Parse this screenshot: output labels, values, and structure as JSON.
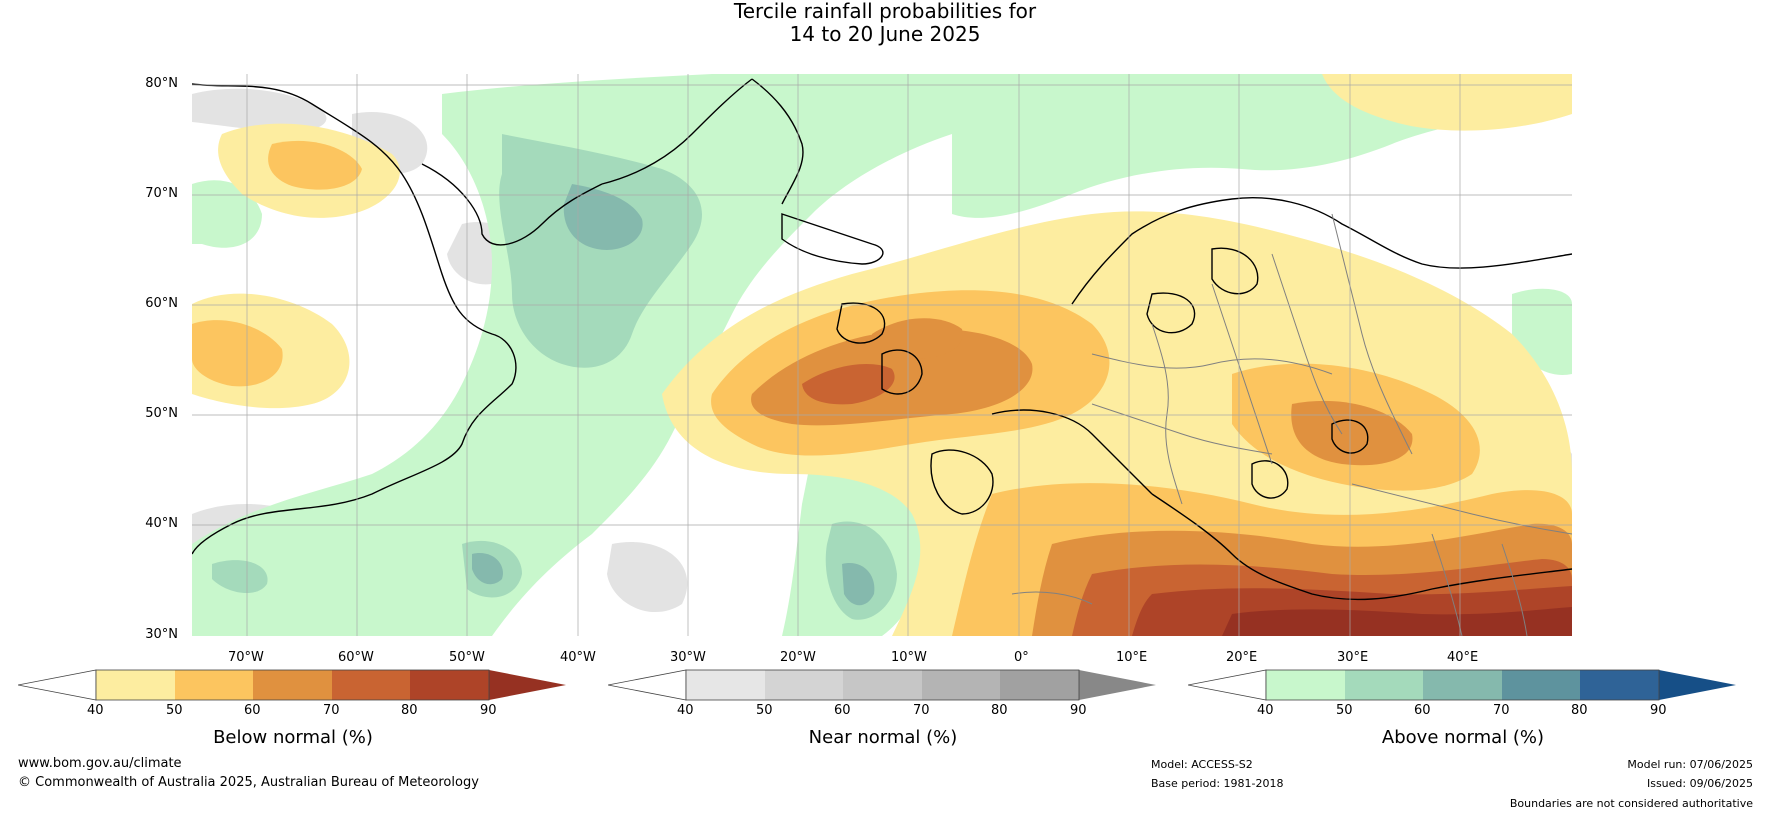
{
  "title": {
    "line1": "Tercile rainfall probabilities for",
    "line2": "14 to 20 June 2025"
  },
  "map": {
    "lat_labels": [
      "80°N",
      "70°N",
      "60°N",
      "50°N",
      "40°N",
      "30°N"
    ],
    "lon_labels": [
      "70°W",
      "60°W",
      "50°W",
      "40°W",
      "30°W",
      "20°W",
      "10°W",
      "0°",
      "10°E",
      "20°E",
      "30°E",
      "40°E"
    ]
  },
  "colorbars": [
    {
      "name": "below",
      "title": "Below normal (%)",
      "ticks": [
        "40",
        "50",
        "60",
        "70",
        "80",
        "90"
      ],
      "colors": [
        "#fdeda0",
        "#fcc55f",
        "#e0913f",
        "#c96432",
        "#ae4428",
        "#963122"
      ]
    },
    {
      "name": "near",
      "title": "Near normal (%)",
      "ticks": [
        "40",
        "50",
        "60",
        "70",
        "80",
        "90"
      ],
      "colors": [
        "#e6e6e6",
        "#d4d4d4",
        "#c6c6c6",
        "#b4b4b4",
        "#a1a1a1",
        "#888888"
      ]
    },
    {
      "name": "above",
      "title": "Above normal (%)",
      "ticks": [
        "40",
        "50",
        "60",
        "70",
        "80",
        "90"
      ],
      "colors": [
        "#c8f7cc",
        "#a4dabb",
        "#85b9ad",
        "#5e939e",
        "#2f6397",
        "#164f87"
      ]
    }
  ],
  "footer": {
    "website": "www.bom.gov.au/climate",
    "copyright": "© Commonwealth of Australia 2025, Australian Bureau of Meteorology",
    "model": "Model: ACCESS-S2",
    "base_period": "Base period: 1981-2018",
    "model_run": "Model run: 07/06/2025",
    "issued": "Issued: 09/06/2025",
    "disclaimer": "Boundaries are not considered authoritative"
  }
}
